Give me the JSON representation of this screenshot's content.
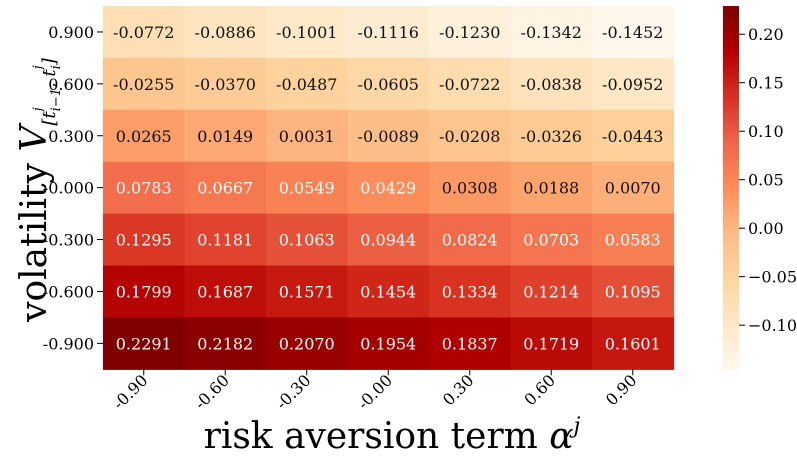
{
  "chart_data": {
    "type": "heatmap",
    "title": "",
    "xlabel_text": "risk aversion term ",
    "xlabel_symbol": "α",
    "xlabel_sup": "j",
    "ylabel_text": "volatility ",
    "ylabel_symbol": "V",
    "ylabel_sub": "[t",
    "ylabel_sub_sup1": "j",
    "ylabel_sub_mid": "i−1",
    "ylabel_sub_mid2": ", t",
    "ylabel_sub_sup2": "j",
    "ylabel_sub_end": "i",
    "ylabel_sub_close": "]",
    "x_categories": [
      "-0.90",
      "-0.60",
      "-0.30",
      "-0.00",
      "0.30",
      "0.60",
      "0.90"
    ],
    "y_categories": [
      "0.900",
      "0.600",
      "0.300",
      "-0.000",
      "-0.300",
      "-0.600",
      "-0.900"
    ],
    "values": [
      [
        -0.0772,
        -0.0886,
        -0.1001,
        -0.1116,
        -0.123,
        -0.1342,
        -0.1452
      ],
      [
        -0.0255,
        -0.037,
        -0.0487,
        -0.0605,
        -0.0722,
        -0.0838,
        -0.0952
      ],
      [
        0.0265,
        0.0149,
        0.0031,
        -0.0089,
        -0.0208,
        -0.0326,
        -0.0443
      ],
      [
        0.0783,
        0.0667,
        0.0549,
        0.0429,
        0.0308,
        0.0188,
        0.007
      ],
      [
        0.1295,
        0.1181,
        0.1063,
        0.0944,
        0.0824,
        0.0703,
        0.0583
      ],
      [
        0.1799,
        0.1687,
        0.1571,
        0.1454,
        0.1334,
        0.1214,
        0.1095
      ],
      [
        0.2291,
        0.2182,
        0.207,
        0.1954,
        0.1837,
        0.1719,
        0.1601
      ]
    ],
    "cell_labels": [
      [
        "-0.0772",
        "-0.0886",
        "-0.1001",
        "-0.1116",
        "-0.1230",
        "-0.1342",
        "-0.1452"
      ],
      [
        "-0.0255",
        "-0.0370",
        "-0.0487",
        "-0.0605",
        "-0.0722",
        "-0.0838",
        "-0.0952"
      ],
      [
        "0.0265",
        "0.0149",
        "0.0031",
        "-0.0089",
        "-0.0208",
        "-0.0326",
        "-0.0443"
      ],
      [
        "0.0783",
        "0.0667",
        "0.0549",
        "0.0429",
        "0.0308",
        "0.0188",
        "0.0070"
      ],
      [
        "0.1295",
        "0.1181",
        "0.1063",
        "0.0944",
        "0.0824",
        "0.0703",
        "0.0583"
      ],
      [
        "0.1799",
        "0.1687",
        "0.1571",
        "0.1454",
        "0.1334",
        "0.1214",
        "0.1095"
      ],
      [
        "0.2291",
        "0.2182",
        "0.2070",
        "0.1954",
        "0.1837",
        "0.1719",
        "0.1601"
      ]
    ],
    "colorbar": {
      "min": -0.1452,
      "max": 0.2291,
      "ticks": [
        0.2,
        0.15,
        0.1,
        0.05,
        0.0,
        -0.05,
        -0.1
      ],
      "tick_labels": [
        "0.20",
        "0.15",
        "0.10",
        "0.05",
        "0.00",
        "−0.05",
        "−0.10"
      ],
      "colormap": "OrRd"
    },
    "colormap_stops": [
      "#fff7ec",
      "#fee8c8",
      "#fdd49e",
      "#fdbb84",
      "#fc8d59",
      "#ef6548",
      "#d7301f",
      "#b30000",
      "#7f0000"
    ],
    "text_dark": "#111111",
    "text_light": "#ffffff"
  }
}
